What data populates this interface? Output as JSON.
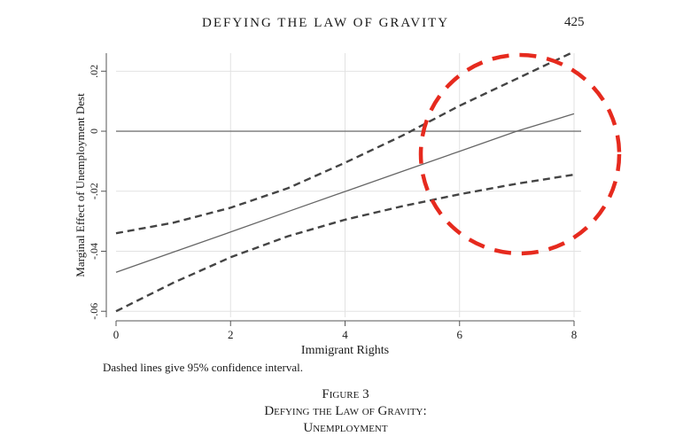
{
  "header": {
    "running_title": "DEFYING THE LAW OF GRAVITY",
    "page_number": "425"
  },
  "chart_data": {
    "type": "line",
    "title": "",
    "xlabel": "Immigrant Rights",
    "ylabel": "Marginal Effect of Unemployment Dest",
    "xlim": [
      0,
      8
    ],
    "ylim": [
      -0.062,
      0.026
    ],
    "x_ticks": [
      0,
      2,
      4,
      6,
      8
    ],
    "x_tick_labels": [
      "0",
      "2",
      "4",
      "6",
      "8"
    ],
    "y_ticks": [
      -0.06,
      -0.04,
      -0.02,
      0,
      0.02
    ],
    "y_tick_labels": [
      "-.06",
      "-.04",
      "-.02",
      "0",
      ".02"
    ],
    "grid": true,
    "reference_line_y": 0,
    "series": [
      {
        "role": "estimate",
        "style": "solid",
        "x": [
          0,
          1,
          2,
          3,
          4,
          5,
          6,
          7,
          8
        ],
        "y": [
          -0.047,
          -0.0403,
          -0.0336,
          -0.0268,
          -0.0201,
          -0.0134,
          -0.0067,
          0.0,
          0.0058
        ]
      },
      {
        "role": "upper-ci",
        "style": "dashed",
        "x": [
          0,
          1,
          2,
          3,
          4,
          5,
          6,
          7,
          8
        ],
        "y": [
          -0.034,
          -0.0305,
          -0.0255,
          -0.019,
          -0.0105,
          -0.0015,
          0.0085,
          0.0175,
          0.0265
        ]
      },
      {
        "role": "lower-ci",
        "style": "dashed",
        "x": [
          0,
          1,
          2,
          3,
          4,
          5,
          6,
          7,
          8
        ],
        "y": [
          -0.06,
          -0.0505,
          -0.042,
          -0.035,
          -0.0295,
          -0.025,
          -0.021,
          -0.0175,
          -0.0145
        ]
      }
    ],
    "annotation": {
      "shape": "circle",
      "style": "dashed",
      "color": "#e62a1e"
    }
  },
  "caption": {
    "note": "Dashed lines give 95% confidence interval.",
    "figure_label": "Figure 3",
    "title_line1": "Defying the Law of Gravity:",
    "title_line2": "Unemployment"
  },
  "colors": {
    "text": "#1a1a1a",
    "grid": "#e2e2e2",
    "axis": "#555555",
    "estimate_line": "#666666",
    "ci_line": "#444444",
    "annotation": "#e62a1e"
  }
}
